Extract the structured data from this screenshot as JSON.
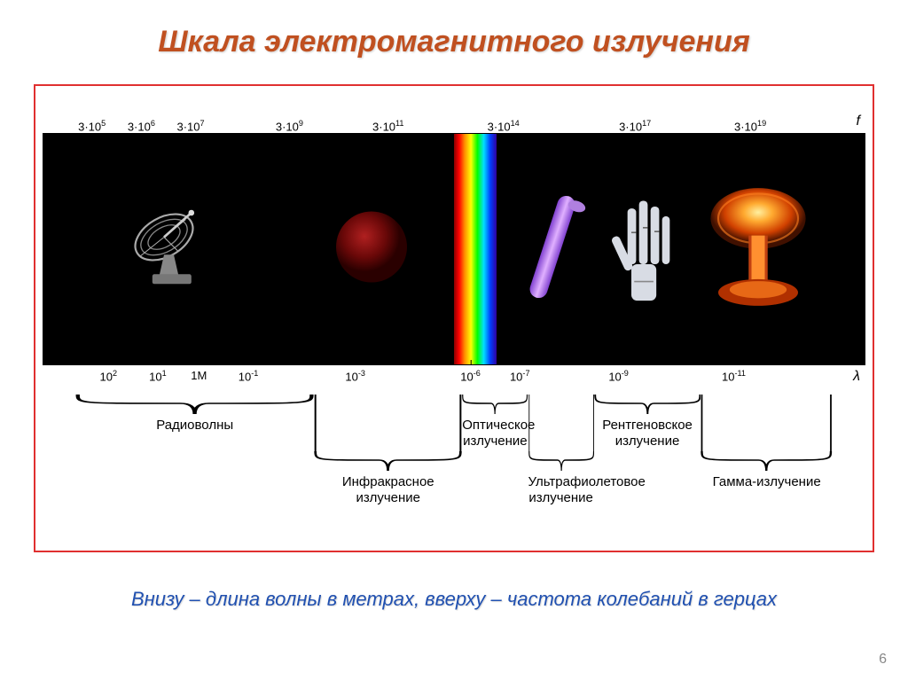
{
  "title": "Шкала электромагнитного излучения",
  "caption": "Внизу – длина волны в метрах, вверху – частота колебаний в герцах",
  "page_number": "6",
  "diagram": {
    "background_color": "#000000",
    "frame_border_color": "#e03030",
    "scale_width_pct": 100,
    "freq_ticks": [
      {
        "label": "3·10⁵",
        "pct": 6
      },
      {
        "label": "3·10⁶",
        "pct": 12
      },
      {
        "label": "3·10⁷",
        "pct": 18
      },
      {
        "label": "3·10⁹",
        "pct": 30
      },
      {
        "label": "3·10¹¹",
        "pct": 42
      },
      {
        "label": "3·10¹⁴",
        "pct": 56
      },
      {
        "label": "3·10¹⁷",
        "pct": 72
      },
      {
        "label": "3·10¹⁹",
        "pct": 86
      }
    ],
    "freq_axis_label": "f",
    "wave_ticks": [
      {
        "label": "10²",
        "pct": 8
      },
      {
        "label": "10¹",
        "pct": 14
      },
      {
        "label": "1М",
        "pct": 19
      },
      {
        "label": "10⁻¹",
        "pct": 25
      },
      {
        "label": "10⁻³",
        "pct": 38
      },
      {
        "label": "10⁻⁶",
        "pct": 52
      },
      {
        "label": "10⁻⁷",
        "pct": 58
      },
      {
        "label": "10⁻⁹",
        "pct": 70
      },
      {
        "label": "10⁻¹¹",
        "pct": 84
      }
    ],
    "wave_axis_label": "λ",
    "rainbow_left_pct": 50,
    "icons": {
      "radio": {
        "pct": 16
      },
      "infrared": {
        "pct": 40,
        "color": "#7a1010"
      },
      "uv_tube": {
        "pct": 62,
        "color": "#c080ff"
      },
      "xray_hand": {
        "pct": 73
      },
      "gamma": {
        "pct": 87
      }
    },
    "regions": [
      {
        "label": "Радиоволны",
        "left_pct": 4,
        "right_pct": 33,
        "row": 1
      },
      {
        "label": "Инфракрасное излучение",
        "left_pct": 33,
        "right_pct": 51,
        "row": 2
      },
      {
        "label": "Оптическое излучение",
        "left_pct": 51,
        "right_pct": 59,
        "row": 1
      },
      {
        "label": "Ультрафиолетовое излучение",
        "left_pct": 59,
        "right_pct": 67,
        "row": 2
      },
      {
        "label": "Рентгеновское излучение",
        "left_pct": 67,
        "right_pct": 80,
        "row": 1
      },
      {
        "label": "Гамма-излучение",
        "left_pct": 80,
        "right_pct": 96,
        "row": 2
      }
    ]
  }
}
